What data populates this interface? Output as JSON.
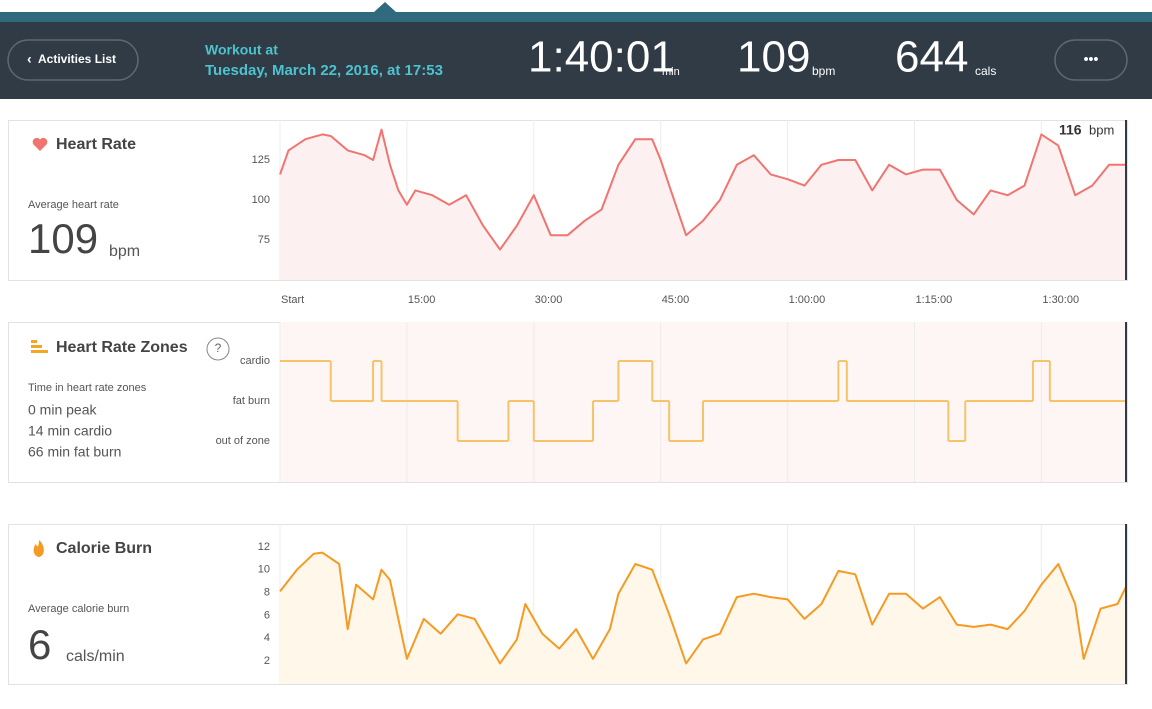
{
  "header": {
    "back_button": "Activities List",
    "workout_label": "Workout at",
    "workout_date": "Tuesday, March 22, 2016, at 17:53",
    "duration": "1:40:01",
    "duration_unit": "min",
    "heart_rate": "109",
    "heart_rate_unit": "bpm",
    "calories": "644",
    "calories_unit": "cals",
    "more_button": "•••"
  },
  "panels": [
    {
      "title": "Heart Rate",
      "stat_label": "Average heart rate",
      "stat_value": "109",
      "stat_unit": "bpm"
    },
    {
      "title": "Heart Rate Zones",
      "help": "?",
      "stat_label": "Time in heart rate zones",
      "lines": [
        "0 min peak",
        "14 min cardio",
        "66 min fat burn"
      ]
    },
    {
      "title": "Calorie Burn",
      "stat_label": "Average calorie burn",
      "stat_value": "6",
      "stat_unit": "cals/min"
    }
  ],
  "chart_data": [
    {
      "type": "area",
      "color": "#f07470",
      "fill": "#fdf0f0",
      "x": [
        0,
        1,
        3,
        5,
        6,
        8,
        10,
        11,
        12,
        13,
        14,
        15,
        16,
        18,
        20,
        22,
        24,
        26,
        28,
        30,
        32,
        34,
        36,
        38,
        40,
        42,
        44,
        45,
        46,
        48,
        50,
        52,
        54,
        56,
        58,
        60,
        62,
        64,
        66,
        68,
        70,
        72,
        74,
        76,
        78,
        80,
        82,
        84,
        86,
        88,
        90,
        92,
        94,
        96,
        98,
        100
      ],
      "values": [
        116,
        131,
        138,
        141,
        140,
        131,
        128,
        125,
        144,
        122,
        106,
        97,
        106,
        103,
        97,
        103,
        84,
        69,
        84,
        103,
        78,
        78,
        87,
        94,
        122,
        138,
        138,
        125,
        109,
        78,
        87,
        100,
        122,
        128,
        116,
        113,
        109,
        122,
        125,
        125,
        106,
        122,
        116,
        119,
        119,
        100,
        91,
        106,
        103,
        109,
        141,
        134,
        103,
        109,
        122,
        122
      ],
      "xlim": [
        0,
        100
      ],
      "xticks": [
        {
          "value": 0,
          "label": "Start"
        },
        {
          "value": 15,
          "label": "15:00"
        },
        {
          "value": 30,
          "label": "30:00"
        },
        {
          "value": 45,
          "label": "45:00"
        },
        {
          "value": 60,
          "label": "1:00:00"
        },
        {
          "value": 75,
          "label": "1:15:00"
        },
        {
          "value": 90,
          "label": "1:30:00"
        }
      ],
      "ylim": [
        50,
        150
      ],
      "yticks": [
        75,
        100,
        125
      ],
      "annotation": "116",
      "annotation_unit": "bpm"
    },
    {
      "type": "step",
      "color": "#f5c46a",
      "levels": [
        "cardio",
        "fat burn",
        "out of zone"
      ],
      "x": [
        0,
        6,
        11,
        12,
        21,
        27,
        30,
        37,
        40,
        44,
        46,
        50,
        66,
        67,
        79,
        81,
        89,
        91
      ],
      "values": [
        "cardio",
        "fat burn",
        "cardio",
        "fat burn",
        "out of zone",
        "fat burn",
        "out of zone",
        "fat burn",
        "cardio",
        "fat burn",
        "out of zone",
        "fat burn",
        "cardio",
        "fat burn",
        "out of zone",
        "fat burn",
        "cardio",
        "fat burn"
      ],
      "xlim": [
        0,
        100
      ]
    },
    {
      "type": "area",
      "color": "#f59a23",
      "fill": "#fef7ea",
      "x": [
        0,
        2,
        4,
        5,
        7,
        8,
        9,
        11,
        12,
        13,
        15,
        17,
        19,
        21,
        23,
        26,
        28,
        29,
        31,
        33,
        35,
        37,
        39,
        40,
        42,
        44,
        46,
        48,
        50,
        52,
        54,
        56,
        58,
        60,
        62,
        64,
        66,
        68,
        70,
        72,
        74,
        76,
        78,
        80,
        82,
        84,
        86,
        88,
        90,
        92,
        94,
        95,
        97,
        99,
        100
      ],
      "values": [
        8.1,
        10,
        11.4,
        11.5,
        10.5,
        4.8,
        8.7,
        7.4,
        10,
        9.1,
        2.2,
        5.7,
        4.4,
        6.1,
        5.7,
        1.8,
        3.9,
        7,
        4.4,
        3.1,
        4.8,
        2.2,
        4.8,
        7.9,
        10.5,
        10,
        6.1,
        1.8,
        3.9,
        4.4,
        7.6,
        7.9,
        7.6,
        7.4,
        5.7,
        7,
        9.9,
        9.6,
        5.2,
        7.9,
        7.9,
        6.6,
        7.6,
        5.2,
        5,
        5.2,
        4.8,
        6.4,
        8.7,
        10.5,
        7,
        2.2,
        6.6,
        7,
        8.5
      ],
      "xlim": [
        0,
        100
      ],
      "ylim": [
        0,
        14
      ],
      "yticks": [
        2,
        4,
        6,
        8,
        10,
        12
      ]
    }
  ]
}
